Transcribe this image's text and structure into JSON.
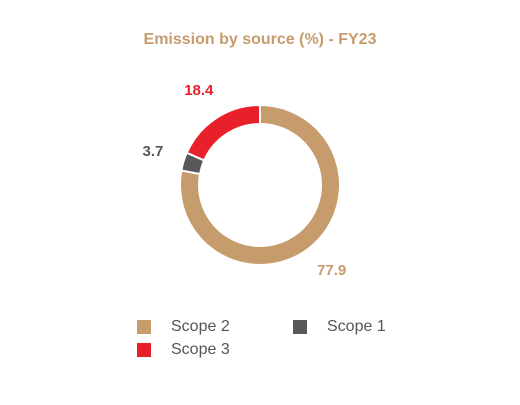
{
  "chart_data": {
    "type": "pie",
    "title": "Emission by source (%) - FY23",
    "categories": [
      "Scope 2",
      "Scope 1",
      "Scope 3"
    ],
    "values": [
      77.9,
      3.7,
      18.4
    ],
    "colors": [
      "#c69c6d",
      "#58585a",
      "#e8202a"
    ]
  }
}
